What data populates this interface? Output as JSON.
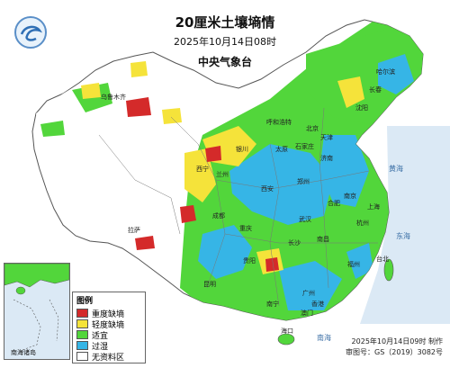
{
  "header": {
    "title": "20厘米土壤墒情",
    "datetime": "2025年10月14日08时",
    "agency": "中央气象台"
  },
  "legend": {
    "title": "图例",
    "items": [
      {
        "label": "重度缺墒",
        "color": "#d42a2a"
      },
      {
        "label": "轻度缺墒",
        "color": "#f5e33a"
      },
      {
        "label": "适宜",
        "color": "#52d63b"
      },
      {
        "label": "过湿",
        "color": "#36b5e6"
      },
      {
        "label": "无资料区",
        "color": "#ffffff"
      }
    ]
  },
  "inset_label": "南海诸岛",
  "footer": {
    "issued": "2025年10月14日09时 制作",
    "review": "审图号：GS（2019）3082号"
  },
  "colors": {
    "sea": "#dbe9f5",
    "border": "#555555",
    "no_data": "#ffffff"
  },
  "map_labels": {
    "cities": [
      "哈尔滨",
      "长春",
      "沈阳",
      "北京",
      "天津",
      "石家庄",
      "太原",
      "呼和浩特",
      "济南",
      "郑州",
      "西安",
      "兰州",
      "银川",
      "西宁",
      "武汉",
      "合肥",
      "南京",
      "上海",
      "杭州",
      "长沙",
      "南昌",
      "福州",
      "台北",
      "广州",
      "南宁",
      "海口",
      "成都",
      "重庆",
      "贵阳",
      "昆明",
      "拉萨",
      "乌鲁木齐",
      "香港",
      "澳门"
    ],
    "seas": [
      "黄海",
      "东海",
      "南海"
    ]
  }
}
